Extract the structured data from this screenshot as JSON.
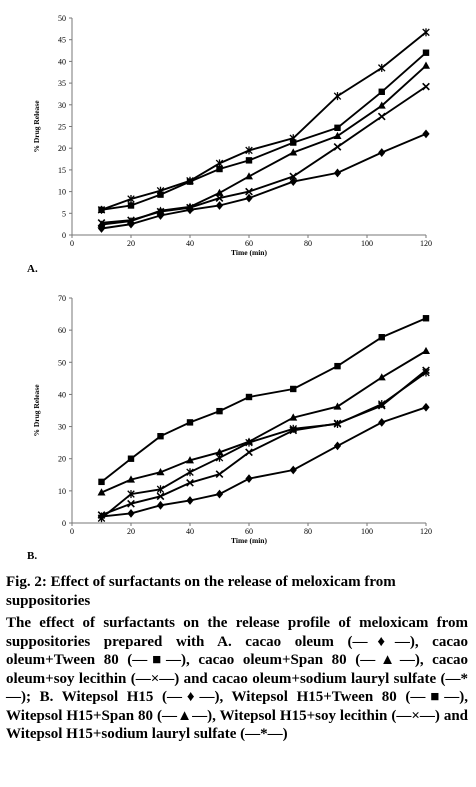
{
  "figure": {
    "panel_a_label": "A.",
    "panel_b_label": "B.",
    "title": "Fig. 2: Effect of surfactants on the release of meloxicam from suppositories",
    "caption": "The effect of surfactants on the release profile of meloxicam from suppositories prepared with A. cacao oleum (—♦—), cacao oleum+Tween 80 (—■—), cacao oleum+Span 80 (—▲—), cacao oleum+soy lecithin (—×—) and cacao oleum+sodium lauryl sulfate (—*—); B. Witepsol H15 (—♦—), Witepsol H15+Tween 80 (—■—), Witepsol H15+Span 80 (—▲—), Witepsol H15+soy lecithin (—×—) and Witepsol H15+sodium lauryl sulfate (—*—)"
  },
  "chart_data": [
    {
      "type": "line",
      "panel": "A",
      "xlabel": "Time (min)",
      "ylabel": "% Drug Release",
      "xlim": [
        0,
        120
      ],
      "ylim": [
        0,
        50
      ],
      "xticks": [
        0,
        20,
        40,
        60,
        80,
        100,
        120
      ],
      "yticks": [
        0,
        5,
        10,
        15,
        20,
        25,
        30,
        35,
        40,
        45,
        50
      ],
      "x": [
        10,
        20,
        30,
        40,
        50,
        60,
        75,
        90,
        105,
        120
      ],
      "grid": false,
      "series": [
        {
          "marker": "diamond",
          "values": [
            1.5,
            2.5,
            4.5,
            5.8,
            6.8,
            8.5,
            12.3,
            14.3,
            19.0,
            23.3
          ]
        },
        {
          "marker": "square",
          "values": [
            5.8,
            6.8,
            9.3,
            12.3,
            15.2,
            17.2,
            21.3,
            24.7,
            33.0,
            42.0
          ]
        },
        {
          "marker": "triangle",
          "values": [
            2.4,
            3.2,
            5.6,
            6.5,
            9.7,
            13.5,
            19.0,
            22.8,
            29.8,
            39.0
          ]
        },
        {
          "marker": "x",
          "values": [
            2.8,
            3.4,
            5.4,
            6.3,
            8.5,
            10.0,
            13.5,
            20.3,
            27.3,
            34.2
          ]
        },
        {
          "marker": "star",
          "values": [
            5.8,
            8.3,
            10.2,
            12.5,
            16.5,
            19.5,
            22.3,
            32.0,
            38.5,
            46.7
          ]
        }
      ]
    },
    {
      "type": "line",
      "panel": "B",
      "xlabel": "Time (min)",
      "ylabel": "% Drug Release",
      "xlim": [
        0,
        120
      ],
      "ylim": [
        0,
        70
      ],
      "xticks": [
        0,
        20,
        40,
        60,
        80,
        100,
        120
      ],
      "yticks": [
        0,
        10,
        20,
        30,
        40,
        50,
        60,
        70
      ],
      "x": [
        10,
        20,
        30,
        40,
        50,
        60,
        75,
        90,
        105,
        120
      ],
      "grid": false,
      "series": [
        {
          "marker": "diamond",
          "values": [
            2.0,
            3.0,
            5.5,
            7.0,
            9.0,
            13.8,
            16.5,
            24.0,
            31.3,
            36.0
          ]
        },
        {
          "marker": "square",
          "values": [
            12.8,
            20.0,
            27.0,
            31.3,
            34.8,
            39.2,
            41.7,
            48.8,
            57.8,
            63.7
          ]
        },
        {
          "marker": "triangle",
          "values": [
            9.5,
            13.5,
            15.8,
            19.5,
            22.0,
            25.3,
            32.8,
            36.2,
            45.3,
            53.5
          ]
        },
        {
          "marker": "x",
          "values": [
            2.5,
            6.0,
            8.3,
            12.5,
            15.2,
            22.0,
            28.8,
            31.0,
            36.5,
            47.5
          ]
        },
        {
          "marker": "star",
          "values": [
            1.5,
            9.0,
            10.5,
            15.8,
            20.3,
            25.0,
            29.3,
            30.8,
            37.0,
            46.8
          ]
        }
      ]
    }
  ]
}
